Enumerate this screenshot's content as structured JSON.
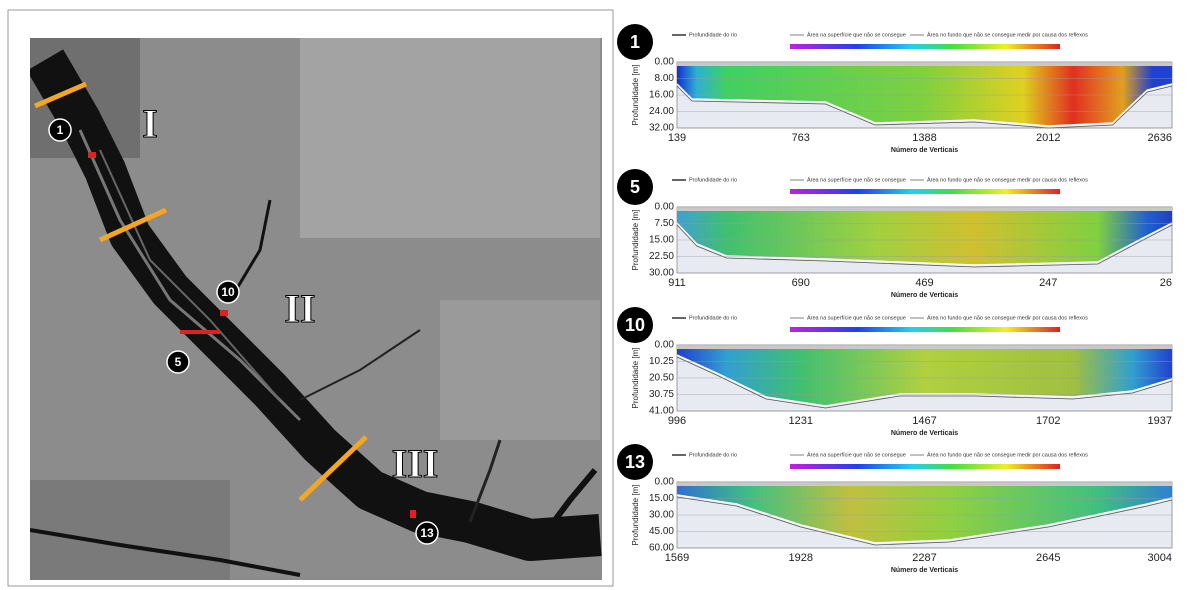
{
  "map": {
    "regions": [
      "I",
      "II",
      "III"
    ],
    "sections": [
      "1",
      "5",
      "10",
      "13"
    ]
  },
  "profiles": [
    {
      "number": "1",
      "legend": [
        "Profundidade do rio",
        "Área na superfície que não se consegue",
        "Área no fundo que não se consegue medir por causa dos reflexos"
      ],
      "ylabel": "Profundidade [m]",
      "xlabel": "Número de Verticais",
      "yticks": [
        "0.00",
        "8.00",
        "16.00",
        "24.00",
        "32.00"
      ],
      "xticks": [
        "139",
        "763",
        "1388",
        "2012",
        "2636"
      ]
    },
    {
      "number": "5",
      "legend": [
        "Profundidade do rio",
        "Área na superfície que não se consegue",
        "Área no fundo que não se consegue medir por causa dos reflexos"
      ],
      "ylabel": "Profundidade [m]",
      "xlabel": "Número de Verticais",
      "yticks": [
        "0.00",
        "7.50",
        "15.00",
        "22.50",
        "30.00"
      ],
      "xticks": [
        "911",
        "690",
        "469",
        "247",
        "26"
      ]
    },
    {
      "number": "10",
      "legend": [
        "Profundidade do rio",
        "Área na superfície que não se consegue",
        "Área no fundo que não se consegue medir por causa dos reflexos"
      ],
      "ylabel": "Profundidade [m]",
      "xlabel": "Número de Verticais",
      "yticks": [
        "0.00",
        "10.25",
        "20.50",
        "30.75",
        "41.00"
      ],
      "xticks": [
        "996",
        "1231",
        "1467",
        "1702",
        "1937"
      ]
    },
    {
      "number": "13",
      "legend": [
        "Profundidade do rio",
        "Área na superfície que não se consegue",
        "Área no fundo que não se consegue medir por causa dos reflexos"
      ],
      "ylabel": "Profundidade [m]",
      "xlabel": "Número de Verticais",
      "yticks": [
        "0.00",
        "15.00",
        "30.00",
        "45.00",
        "60.00"
      ],
      "xticks": [
        "1569",
        "1928",
        "2287",
        "2645",
        "3004"
      ]
    }
  ]
}
